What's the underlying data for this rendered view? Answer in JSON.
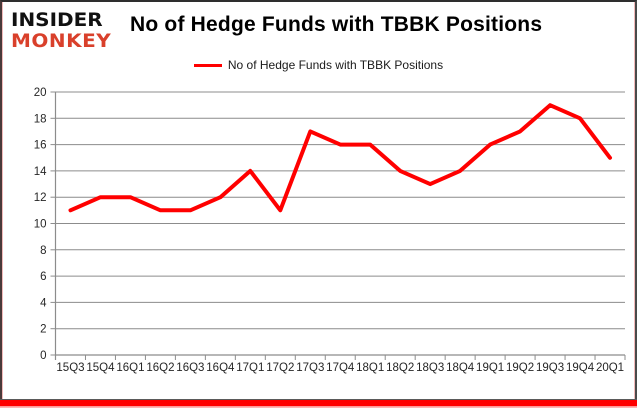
{
  "logo": {
    "line1": "INSIDER",
    "line2": "MONKEY"
  },
  "title": "No of Hedge Funds with TBBK Positions",
  "legend": {
    "label": "No of Hedge Funds with TBBK Positions"
  },
  "colors": {
    "line": "#ff0000",
    "grid": "#8c8c8c",
    "axis": "#8c8c8c",
    "tick_text": "#262626",
    "title_text": "#000000",
    "logo_black": "#111111",
    "logo_red": "#d9402b",
    "bottom_bar": "#ff0000"
  },
  "chart_data": {
    "type": "line",
    "title": "No of Hedge Funds with TBBK Positions",
    "series_name": "No of Hedge Funds with TBBK Positions",
    "categories": [
      "15Q3",
      "15Q4",
      "16Q1",
      "16Q2",
      "16Q3",
      "16Q4",
      "17Q1",
      "17Q2",
      "17Q3",
      "17Q4",
      "18Q1",
      "18Q2",
      "18Q3",
      "18Q4",
      "19Q1",
      "19Q2",
      "19Q3",
      "19Q4",
      "20Q1"
    ],
    "values": [
      11,
      12,
      12,
      11,
      11,
      12,
      14,
      11,
      17,
      16,
      16,
      14,
      13,
      14,
      16,
      17,
      19,
      18,
      15
    ],
    "xlabel": "",
    "ylabel": "",
    "ylim": [
      0,
      20
    ],
    "yticks": [
      0,
      2,
      4,
      6,
      8,
      10,
      12,
      14,
      16,
      18,
      20
    ],
    "grid": true,
    "legend_position": "top-center"
  }
}
